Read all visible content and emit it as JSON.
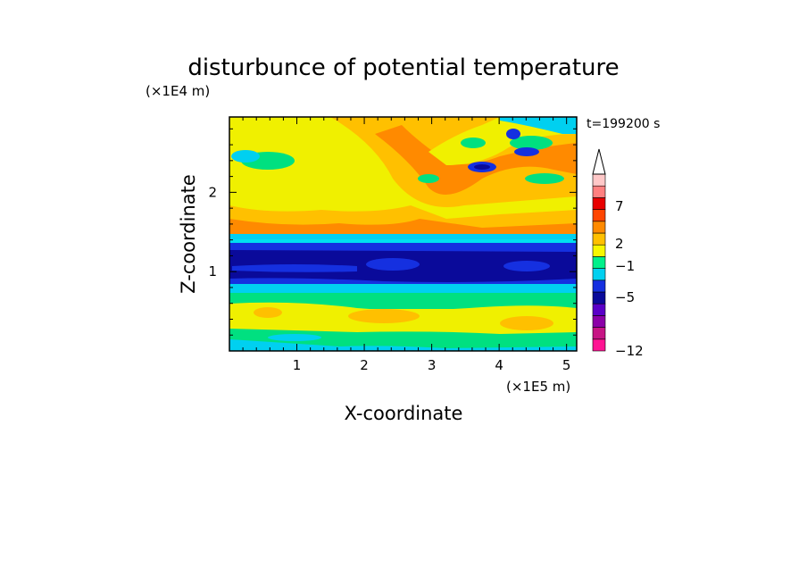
{
  "chart_data": {
    "type": "heatmap",
    "title": "disturbunce of potential temperature",
    "xlabel": "X-coordinate",
    "ylabel": "Z-coordinate",
    "x_unit": "(×1E5 m)",
    "y_unit": "(×1E4 m)",
    "time_label": "t=199200 s",
    "xlim": [
      0,
      5.15
    ],
    "ylim": [
      0,
      2.95
    ],
    "x_ticks": [
      "1",
      "2",
      "3",
      "4",
      "5"
    ],
    "y_ticks": [
      "1",
      "2"
    ],
    "grid": false,
    "legend_position": "right",
    "colorbar": {
      "tick_labels": [
        "7",
        "2",
        "−1",
        "−5",
        "−12"
      ],
      "colors": [
        "#ff1493",
        "#c71585",
        "#8b00a8",
        "#5a00c8",
        "#0a0a9a",
        "#1530e0",
        "#00d0f0",
        "#00f08a",
        "#f8f800",
        "#ffc000",
        "#ff8a00",
        "#ff4500",
        "#e80000",
        "#ff8080",
        "#ffc8c8"
      ],
      "extends_max": true
    },
    "field_regions": [
      {
        "z": [
          0.0,
          0.12
        ],
        "level": "cyan"
      },
      {
        "z": [
          0.12,
          0.35
        ],
        "level": "green"
      },
      {
        "z": [
          0.35,
          0.7
        ],
        "level": "yellow-orange"
      },
      {
        "z": [
          0.7,
          0.85
        ],
        "level": "cyan"
      },
      {
        "z": [
          0.85,
          1.05
        ],
        "level": "blue"
      },
      {
        "z": [
          1.05,
          1.35
        ],
        "level": "dark blue"
      },
      {
        "z": [
          1.35,
          1.45
        ],
        "level": "cyan"
      },
      {
        "z": [
          1.45,
          1.7
        ],
        "level": "orange"
      },
      {
        "z": [
          1.7,
          2.95
        ],
        "level": "yellow with orange bands"
      }
    ]
  }
}
